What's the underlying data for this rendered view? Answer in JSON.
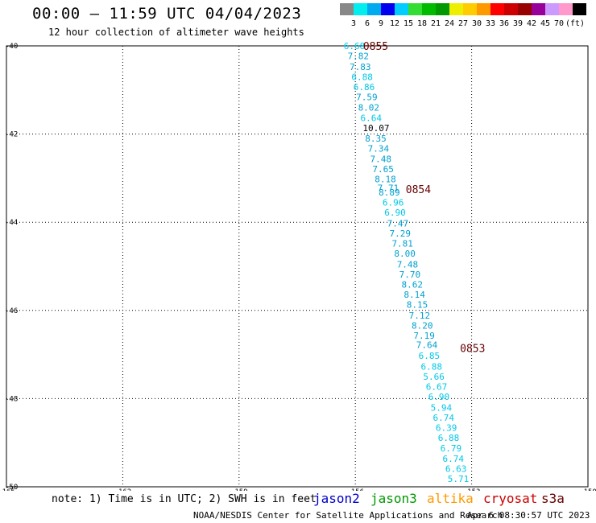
{
  "title": "00:00 – 11:59 UTC 04/04/2023",
  "subtitle": "12 hour collection of altimeter wave heights",
  "color_scale": {
    "colors": [
      "#888888",
      "#00eeee",
      "#00aaee",
      "#0000ee",
      "#00ccff",
      "#33dd33",
      "#00bb00",
      "#009900",
      "#eeee00",
      "#ffcc00",
      "#ff9900",
      "#ff0000",
      "#cc0000",
      "#990000",
      "#990099",
      "#cc99ff",
      "#ff99cc",
      "#000000"
    ],
    "labels": [
      "3",
      "6",
      "9",
      "12",
      "15",
      "18",
      "21",
      "24",
      "27",
      "30",
      "33",
      "36",
      "39",
      "42",
      "45",
      "70",
      "(ft)"
    ]
  },
  "note": "note: 1) Time is in UTC; 2) SWH is in feet",
  "legend": [
    {
      "name": "jason2",
      "color": "#0000cc"
    },
    {
      "name": "jason3",
      "color": "#009900"
    },
    {
      "name": "altika",
      "color": "#ff9900"
    },
    {
      "name": "cryosat",
      "color": "#cc0000"
    },
    {
      "name": "s3a",
      "color": "#660000"
    }
  ],
  "footer_credit": "NOAA/NESDIS Center for Satellite Applications and Research",
  "footer_time": "Apr  6 08:30:57 UTC 2023",
  "chart_data": {
    "type": "scatter",
    "xlim": [
      -165,
      -150
    ],
    "ylim": [
      -50,
      -40
    ],
    "x_ticks": [
      -165,
      -162,
      -159,
      -156,
      -153,
      -150
    ],
    "y_ticks": [
      -40,
      -42,
      -44,
      -46,
      -48,
      -50
    ],
    "grid": true,
    "time_labels": [
      {
        "text": "0855",
        "x": -155.8,
        "y": -40.0
      },
      {
        "text": "0854",
        "x": -154.7,
        "y": -43.25
      },
      {
        "text": "0853",
        "x": -153.3,
        "y": -46.85
      }
    ],
    "points": [
      {
        "x": -156.3,
        "y": -40.0,
        "v": "6.68"
      },
      {
        "x": -156.2,
        "y": -40.23,
        "v": "7.82"
      },
      {
        "x": -156.15,
        "y": -40.47,
        "v": "7.83"
      },
      {
        "x": -156.1,
        "y": -40.7,
        "v": "6.88"
      },
      {
        "x": -156.05,
        "y": -40.93,
        "v": "6.86"
      },
      {
        "x": -155.98,
        "y": -41.16,
        "v": "7.59"
      },
      {
        "x": -155.93,
        "y": -41.4,
        "v": "8.02"
      },
      {
        "x": -155.87,
        "y": -41.63,
        "v": "6.64"
      },
      {
        "x": -155.81,
        "y": -41.86,
        "v": "10.07"
      },
      {
        "x": -155.75,
        "y": -42.1,
        "v": "8.35"
      },
      {
        "x": -155.68,
        "y": -42.33,
        "v": "7.34"
      },
      {
        "x": -155.62,
        "y": -42.56,
        "v": "7.48"
      },
      {
        "x": -155.56,
        "y": -42.79,
        "v": "7.65"
      },
      {
        "x": -155.5,
        "y": -43.02,
        "v": "8.18"
      },
      {
        "x": -155.43,
        "y": -43.22,
        "v": "7.71"
      },
      {
        "x": -155.4,
        "y": -43.32,
        "v": "8.89"
      },
      {
        "x": -155.3,
        "y": -43.55,
        "v": "6.96"
      },
      {
        "x": -155.25,
        "y": -43.78,
        "v": "6.90"
      },
      {
        "x": -155.18,
        "y": -44.02,
        "v": "7.47"
      },
      {
        "x": -155.12,
        "y": -44.25,
        "v": "7.29"
      },
      {
        "x": -155.06,
        "y": -44.48,
        "v": "7.81"
      },
      {
        "x": -155.0,
        "y": -44.71,
        "v": "8.00"
      },
      {
        "x": -154.93,
        "y": -44.95,
        "v": "7.48"
      },
      {
        "x": -154.87,
        "y": -45.18,
        "v": "7.70"
      },
      {
        "x": -154.81,
        "y": -45.41,
        "v": "8.62"
      },
      {
        "x": -154.75,
        "y": -45.64,
        "v": "8.14"
      },
      {
        "x": -154.68,
        "y": -45.87,
        "v": "8.15"
      },
      {
        "x": -154.62,
        "y": -46.11,
        "v": "7.12"
      },
      {
        "x": -154.55,
        "y": -46.34,
        "v": "8.20"
      },
      {
        "x": -154.5,
        "y": -46.57,
        "v": "7.19"
      },
      {
        "x": -154.43,
        "y": -46.78,
        "v": "7.64"
      },
      {
        "x": -154.37,
        "y": -47.03,
        "v": "6.85"
      },
      {
        "x": -154.31,
        "y": -47.27,
        "v": "6.88"
      },
      {
        "x": -154.25,
        "y": -47.5,
        "v": "5.66"
      },
      {
        "x": -154.18,
        "y": -47.73,
        "v": "6.67"
      },
      {
        "x": -154.12,
        "y": -47.96,
        "v": "6.90"
      },
      {
        "x": -154.06,
        "y": -48.2,
        "v": "5.94"
      },
      {
        "x": -154.0,
        "y": -48.43,
        "v": "6.74"
      },
      {
        "x": -153.93,
        "y": -48.66,
        "v": "6.39"
      },
      {
        "x": -153.87,
        "y": -48.89,
        "v": "6.88"
      },
      {
        "x": -153.81,
        "y": -49.12,
        "v": "6.79"
      },
      {
        "x": -153.75,
        "y": -49.36,
        "v": "6.74"
      },
      {
        "x": -153.68,
        "y": -49.59,
        "v": "6.63"
      },
      {
        "x": -153.62,
        "y": -49.82,
        "v": "5.71"
      }
    ]
  }
}
